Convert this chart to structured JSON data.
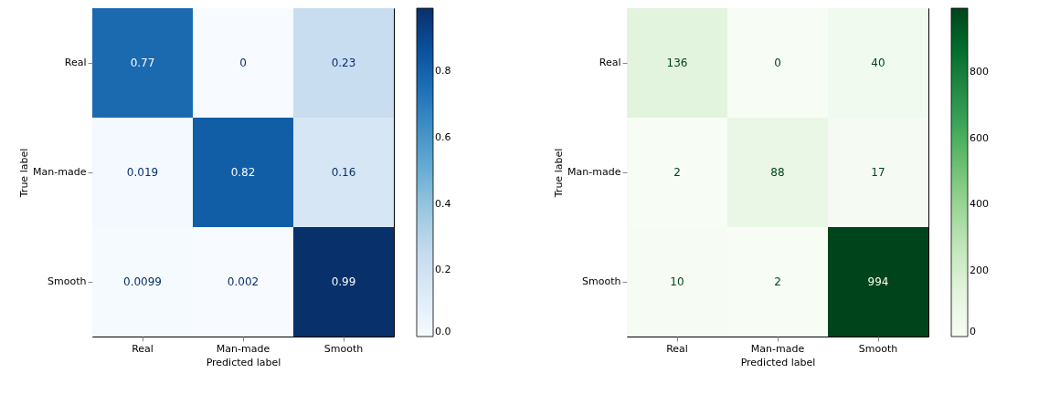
{
  "chart_data": [
    {
      "type": "heatmap",
      "xlabel": "Predicted label",
      "ylabel": "True label",
      "categories": [
        "Real",
        "Man-made",
        "Smooth"
      ],
      "y_categories": [
        "Real",
        "Man-made",
        "Smooth"
      ],
      "cells": [
        [
          0.77,
          0,
          0.23
        ],
        [
          0.019,
          0.82,
          0.16
        ],
        [
          0.0099,
          0.002,
          0.99
        ]
      ],
      "data_labels": true,
      "clim": [
        0,
        0.99
      ],
      "cticks": [
        {
          "value": 0,
          "label": "0.0"
        },
        {
          "value": 0.2,
          "label": "0.2"
        },
        {
          "value": 0.4,
          "label": "0.4"
        },
        {
          "value": 0.6,
          "label": "0.6"
        },
        {
          "value": 0.8,
          "label": "0.8"
        }
      ],
      "colors": [
        "#f7fbff",
        "#deebf7",
        "#c6dbef",
        "#9ecae1",
        "#6baed6",
        "#4292c6",
        "#2171b5",
        "#08519c",
        "#08306b"
      ]
    },
    {
      "type": "heatmap",
      "xlabel": "Predicted label",
      "ylabel": "True label",
      "categories": [
        "Real",
        "Man-made",
        "Smooth"
      ],
      "y_categories": [
        "Real",
        "Man-made",
        "Smooth"
      ],
      "cells": [
        [
          136,
          0,
          40
        ],
        [
          2,
          88,
          17
        ],
        [
          10,
          2,
          994
        ]
      ],
      "data_labels": true,
      "clim": [
        0,
        994
      ],
      "cticks": [
        0,
        200,
        400,
        600,
        800
      ],
      "colors": [
        "#f7fcf5",
        "#e5f5e0",
        "#c7e9c0",
        "#a1d99b",
        "#74c476",
        "#41ab5d",
        "#238b45",
        "#006d2c",
        "#00441b"
      ]
    }
  ]
}
